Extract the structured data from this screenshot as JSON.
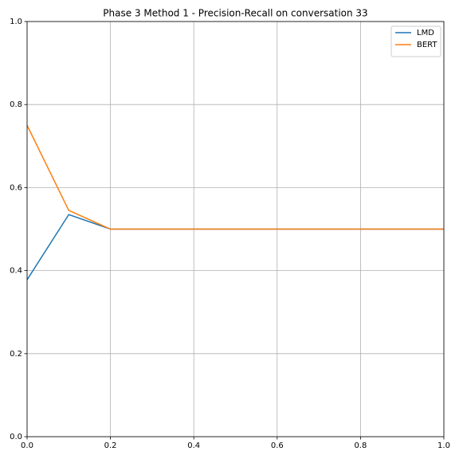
{
  "chart_data": {
    "type": "line",
    "title": "Phase 3 Method 1 - Precision-Recall on conversation 33",
    "x": [
      0,
      0.1,
      0.2,
      0.3,
      0.4,
      0.5,
      0.6,
      0.7,
      0.8,
      0.9,
      1.0
    ],
    "series": [
      {
        "name": "LMD",
        "color": "#1f77b4",
        "values": [
          0.378,
          0.535,
          0.5,
          0.5,
          0.5,
          0.5,
          0.5,
          0.5,
          0.5,
          0.5,
          0.5
        ]
      },
      {
        "name": "BERT",
        "color": "#ff7f0e",
        "values": [
          0.75,
          0.545,
          0.5,
          0.5,
          0.5,
          0.5,
          0.5,
          0.5,
          0.5,
          0.5,
          0.5
        ]
      }
    ],
    "xlim": [
      0,
      1
    ],
    "ylim": [
      0,
      1
    ],
    "xticks": [
      {
        "value": 0,
        "label": "0.0"
      },
      0.2,
      0.4,
      0.6,
      0.8,
      {
        "value": 1,
        "label": "1.0"
      }
    ],
    "yticks": [
      {
        "value": 0,
        "label": "0.0"
      },
      0.2,
      0.4,
      0.6,
      0.8,
      {
        "value": 1,
        "label": "1.0"
      }
    ],
    "grid": true,
    "legend": "upper right"
  }
}
